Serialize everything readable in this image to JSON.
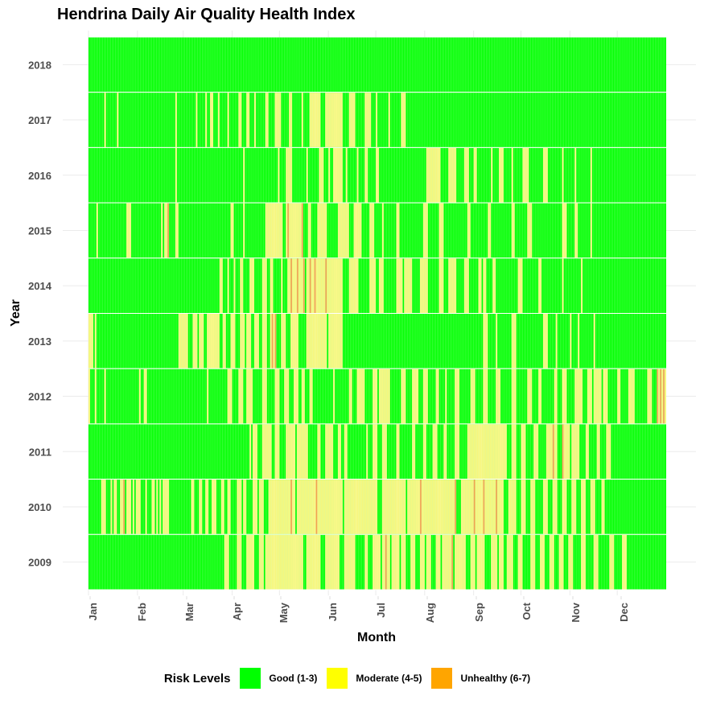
{
  "chart_data": {
    "type": "heatmap",
    "title": "Hendrina Daily Air Quality Health Index",
    "xlabel": "Month",
    "ylabel": "Year",
    "x_ticks": [
      "Jan",
      "Feb",
      "Mar",
      "Apr",
      "May",
      "Jun",
      "Jul",
      "Aug",
      "Sep",
      "Oct",
      "Nov",
      "Dec"
    ],
    "years": [
      2009,
      2010,
      2011,
      2012,
      2013,
      2014,
      2015,
      2016,
      2017,
      2018
    ],
    "days_per_year": 366,
    "legend_title": "Risk Levels",
    "legend": [
      {
        "label": "Good (1-3)",
        "color": "#00ff00"
      },
      {
        "label": "Moderate (4-5)",
        "color": "#ffff00"
      },
      {
        "label": "Unhealthy (6-7)",
        "color": "#ffa500"
      }
    ],
    "series": [
      {
        "year": 2018,
        "moderate_ranges": [],
        "unhealthy_days": []
      },
      {
        "year": 2017,
        "moderate_ranges": [
          [
            10,
            10
          ],
          [
            18,
            18
          ],
          [
            55,
            55
          ],
          [
            68,
            68
          ],
          [
            74,
            74
          ],
          [
            77,
            78
          ],
          [
            82,
            82
          ],
          [
            88,
            88
          ],
          [
            95,
            96
          ],
          [
            100,
            101
          ],
          [
            105,
            105
          ],
          [
            112,
            113
          ],
          [
            118,
            121
          ],
          [
            127,
            128
          ],
          [
            135,
            135
          ],
          [
            140,
            146
          ],
          [
            150,
            160
          ],
          [
            165,
            168
          ],
          [
            175,
            178
          ],
          [
            182,
            182
          ],
          [
            190,
            190
          ],
          [
            198,
            200
          ]
        ],
        "unhealthy_days": []
      },
      {
        "year": 2016,
        "moderate_ranges": [
          [
            55,
            55
          ],
          [
            98,
            98
          ],
          [
            120,
            120
          ],
          [
            125,
            128
          ],
          [
            138,
            138
          ],
          [
            146,
            148
          ],
          [
            152,
            152
          ],
          [
            155,
            160
          ],
          [
            163,
            163
          ],
          [
            170,
            170
          ],
          [
            175,
            176
          ],
          [
            182,
            183
          ],
          [
            214,
            222
          ],
          [
            228,
            232
          ],
          [
            238,
            240
          ],
          [
            244,
            245
          ],
          [
            255,
            255
          ],
          [
            260,
            262
          ],
          [
            268,
            268
          ],
          [
            275,
            278
          ],
          [
            288,
            290
          ],
          [
            300,
            300
          ],
          [
            308,
            308
          ],
          [
            318,
            318
          ]
        ],
        "unhealthy_days": []
      },
      {
        "year": 2015,
        "moderate_ranges": [
          [
            5,
            5
          ],
          [
            24,
            26
          ],
          [
            46,
            46
          ],
          [
            48,
            49
          ],
          [
            55,
            56
          ],
          [
            90,
            91
          ],
          [
            98,
            98
          ],
          [
            112,
            122
          ],
          [
            125,
            134
          ],
          [
            139,
            140
          ],
          [
            145,
            150
          ],
          [
            158,
            164
          ],
          [
            168,
            172
          ],
          [
            178,
            180
          ],
          [
            186,
            186
          ],
          [
            195,
            196
          ],
          [
            212,
            214
          ],
          [
            222,
            224
          ],
          [
            240,
            241
          ],
          [
            253,
            254
          ],
          [
            268,
            269
          ],
          [
            278,
            280
          ],
          [
            300,
            302
          ],
          [
            308,
            309
          ],
          [
            318,
            318
          ]
        ],
        "unhealthy_days": [
          50,
          126,
          135
        ]
      },
      {
        "year": 2014,
        "moderate_ranges": [
          [
            83,
            84
          ],
          [
            88,
            88
          ],
          [
            92,
            92
          ],
          [
            96,
            97
          ],
          [
            102,
            104
          ],
          [
            110,
            112
          ],
          [
            115,
            116
          ],
          [
            122,
            122
          ],
          [
            126,
            136
          ],
          [
            138,
            160
          ],
          [
            165,
            170
          ],
          [
            178,
            181
          ],
          [
            184,
            186
          ],
          [
            195,
            198
          ],
          [
            200,
            204
          ],
          [
            210,
            214
          ],
          [
            222,
            224
          ],
          [
            228,
            232
          ],
          [
            238,
            240
          ],
          [
            247,
            248
          ],
          [
            250,
            251
          ],
          [
            256,
            257
          ],
          [
            272,
            274
          ],
          [
            285,
            286
          ],
          [
            300,
            300
          ],
          [
            312,
            312
          ]
        ],
        "unhealthy_days": [
          128,
          132,
          136,
          140,
          143,
          150
        ]
      },
      {
        "year": 2013,
        "moderate_ranges": [
          [
            0,
            2
          ],
          [
            4,
            4
          ],
          [
            57,
            62
          ],
          [
            66,
            68
          ],
          [
            70,
            72
          ],
          [
            75,
            82
          ],
          [
            85,
            86
          ],
          [
            90,
            92
          ],
          [
            96,
            98
          ],
          [
            100,
            102
          ],
          [
            105,
            107
          ],
          [
            110,
            112
          ],
          [
            115,
            118
          ],
          [
            122,
            124
          ],
          [
            128,
            132
          ],
          [
            138,
            150
          ],
          [
            152,
            160
          ],
          [
            250,
            252
          ],
          [
            258,
            258
          ],
          [
            268,
            270
          ],
          [
            288,
            290
          ],
          [
            296,
            296
          ],
          [
            305,
            305
          ],
          [
            310,
            310
          ],
          [
            320,
            320
          ]
        ],
        "unhealthy_days": [
          116,
          118
        ]
      },
      {
        "year": 2012,
        "moderate_ranges": [
          [
            0,
            0
          ],
          [
            4,
            4
          ],
          [
            10,
            10
          ],
          [
            32,
            32
          ],
          [
            35,
            36
          ],
          [
            75,
            75
          ],
          [
            88,
            90
          ],
          [
            95,
            97
          ],
          [
            100,
            103
          ],
          [
            110,
            112
          ],
          [
            118,
            120
          ],
          [
            124,
            126
          ],
          [
            130,
            132
          ],
          [
            135,
            136
          ],
          [
            140,
            141
          ],
          [
            155,
            155
          ],
          [
            165,
            166
          ],
          [
            170,
            174
          ],
          [
            180,
            182
          ],
          [
            184,
            190
          ],
          [
            198,
            200
          ],
          [
            205,
            208
          ],
          [
            212,
            214
          ],
          [
            220,
            221
          ],
          [
            226,
            226
          ],
          [
            232,
            234
          ],
          [
            242,
            244
          ],
          [
            250,
            252
          ],
          [
            258,
            260
          ],
          [
            268,
            270
          ],
          [
            278,
            280
          ],
          [
            285,
            286
          ],
          [
            295,
            296
          ],
          [
            300,
            302
          ],
          [
            308,
            312
          ],
          [
            316,
            318
          ],
          [
            320,
            324
          ],
          [
            326,
            328
          ],
          [
            335,
            336
          ],
          [
            342,
            345
          ],
          [
            354,
            356
          ],
          [
            360,
            365
          ]
        ],
        "unhealthy_days": [
          360,
          362,
          364
        ]
      },
      {
        "year": 2011,
        "moderate_ranges": [
          [
            102,
            102
          ],
          [
            104,
            106
          ],
          [
            110,
            115
          ],
          [
            118,
            120
          ],
          [
            125,
            130
          ],
          [
            132,
            138
          ],
          [
            145,
            146
          ],
          [
            150,
            154
          ],
          [
            158,
            159
          ],
          [
            162,
            163
          ],
          [
            176,
            176
          ],
          [
            180,
            182
          ],
          [
            186,
            188
          ],
          [
            195,
            196
          ],
          [
            205,
            206
          ],
          [
            212,
            213
          ],
          [
            218,
            220
          ],
          [
            225,
            226
          ],
          [
            232,
            234
          ],
          [
            240,
            264
          ],
          [
            268,
            270
          ],
          [
            274,
            276
          ],
          [
            282,
            284
          ],
          [
            290,
            296
          ],
          [
            300,
            304
          ],
          [
            306,
            310
          ],
          [
            315,
            316
          ],
          [
            322,
            323
          ],
          [
            328,
            330
          ]
        ],
        "unhealthy_days": [
          294,
          300
        ]
      },
      {
        "year": 2010,
        "moderate_ranges": [
          [
            8,
            10
          ],
          [
            14,
            14
          ],
          [
            16,
            17
          ],
          [
            20,
            21
          ],
          [
            24,
            26
          ],
          [
            28,
            28
          ],
          [
            30,
            32
          ],
          [
            36,
            36
          ],
          [
            40,
            41
          ],
          [
            43,
            43
          ],
          [
            45,
            45
          ],
          [
            47,
            50
          ],
          [
            65,
            66
          ],
          [
            70,
            71
          ],
          [
            74,
            75
          ],
          [
            78,
            80
          ],
          [
            84,
            85
          ],
          [
            88,
            89
          ],
          [
            94,
            96
          ],
          [
            98,
            99
          ],
          [
            104,
            106
          ],
          [
            108,
            110
          ],
          [
            114,
            130
          ],
          [
            132,
            160
          ],
          [
            162,
            182
          ],
          [
            186,
            200
          ],
          [
            202,
            232
          ],
          [
            236,
            262
          ],
          [
            266,
            270
          ],
          [
            274,
            276
          ],
          [
            280,
            282
          ],
          [
            288,
            290
          ],
          [
            294,
            296
          ],
          [
            300,
            302
          ],
          [
            306,
            308
          ],
          [
            312,
            314
          ],
          [
            318,
            320
          ],
          [
            325,
            326
          ]
        ],
        "unhealthy_days": [
          22,
          128,
          144,
          210,
          232,
          244,
          250,
          258
        ]
      },
      {
        "year": 2009,
        "moderate_ranges": [
          [
            86,
            88
          ],
          [
            94,
            96
          ],
          [
            100,
            104
          ],
          [
            108,
            110
          ],
          [
            112,
            135
          ],
          [
            138,
            146
          ],
          [
            150,
            158
          ],
          [
            162,
            168
          ],
          [
            175,
            176
          ],
          [
            180,
            184
          ],
          [
            186,
            190
          ],
          [
            192,
            196
          ],
          [
            198,
            200
          ],
          [
            204,
            206
          ],
          [
            210,
            212
          ],
          [
            214,
            216
          ],
          [
            220,
            222
          ],
          [
            224,
            230
          ],
          [
            232,
            238
          ],
          [
            242,
            244
          ],
          [
            246,
            250
          ],
          [
            255,
            258
          ],
          [
            260,
            262
          ],
          [
            265,
            268
          ],
          [
            272,
            274
          ],
          [
            280,
            282
          ],
          [
            286,
            288
          ],
          [
            292,
            294
          ],
          [
            298,
            300
          ],
          [
            304,
            306
          ],
          [
            312,
            314
          ],
          [
            320,
            322
          ],
          [
            330,
            332
          ],
          [
            338,
            340
          ]
        ],
        "unhealthy_days": [
          188,
          230
        ]
      }
    ]
  }
}
